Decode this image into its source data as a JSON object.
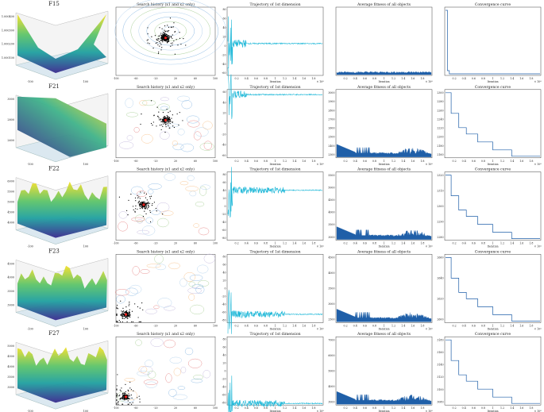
{
  "rows": [
    {
      "func": "F15",
      "search_title": "Search history (x1 and x2 only)",
      "traj_title": "Trajectory of 1st dimension",
      "fit_title": "Average fitness of all objects",
      "conv_title": "Convergence curve",
      "surface_ticks": [
        "1.000400",
        "1.000300",
        "1.000200",
        "1.000100"
      ],
      "traj_yticks": [
        "80",
        "60",
        "40",
        "20",
        "0",
        "-20",
        "-40",
        "-60"
      ],
      "traj_level": 5,
      "fit_yticks": [],
      "conv_yticks": []
    },
    {
      "func": "F21",
      "search_title": "Search history (x1 and x2 only)",
      "traj_title": "Trajectory of 1st dimension",
      "fit_title": "Average fitness of all objects",
      "conv_title": "Convergence curve",
      "surface_ticks": [
        "3000",
        "2800",
        "2600"
      ],
      "traj_yticks": [
        "60",
        "40",
        "20",
        "0",
        "-20",
        "-40",
        "-60"
      ],
      "traj_level": 55,
      "fit_yticks": [
        "3000",
        "2900",
        "2800",
        "2700",
        "2600",
        "2500",
        "2400",
        "2300"
      ],
      "conv_yticks": [
        "2300",
        "2280",
        "2260",
        "2240",
        "2220",
        "2200",
        "2180",
        "2160"
      ]
    },
    {
      "func": "F22",
      "search_title": "Search history (x1 and x2 only)",
      "traj_title": "Trajectory of 1st dimension",
      "fit_title": "Average fitness of all objects",
      "conv_title": "Convergence curve",
      "surface_ticks": [
        "6000",
        "5500",
        "5000",
        "4500",
        "4000"
      ],
      "traj_yticks": [
        "80",
        "60",
        "40",
        "20",
        "0",
        "-20",
        "-40",
        "-60",
        "-80"
      ],
      "traj_level": 40,
      "fit_yticks": [
        "5500",
        "5000",
        "4500",
        "4000",
        "3500",
        "3000"
      ],
      "conv_yticks": [
        "2320",
        "2310",
        "2300",
        "2290",
        "2280"
      ]
    },
    {
      "func": "F23",
      "search_title": "Search history (x1 and x2 only)",
      "traj_title": "Trajectory of 1st dimension",
      "fit_title": "Average fitness of all objects",
      "conv_title": "Convergence curve",
      "surface_ticks": [
        "4500",
        "4000",
        "3500",
        "3000"
      ],
      "traj_yticks": [
        "80",
        "60",
        "40",
        "20",
        "0",
        "-20",
        "-40",
        "-60",
        "-80"
      ],
      "traj_level": -65,
      "fit_yticks": [
        "4500",
        "4000",
        "3500",
        "3000",
        "2500"
      ],
      "conv_yticks": [
        "2660",
        "2640",
        "2620",
        "2600"
      ]
    },
    {
      "func": "F27",
      "search_title": "Search history (x1 and x2 only)",
      "traj_title": "Trajectory of 1st dimension",
      "fit_title": "Average fitness of all objects",
      "conv_title": "Convergence curve",
      "surface_ticks": [
        "5000",
        "4500",
        "4000",
        "3500",
        "3000"
      ],
      "traj_yticks": [
        "80",
        "60",
        "40",
        "20",
        "0",
        "-20",
        "-40",
        "-60",
        "-80"
      ],
      "traj_level": -82,
      "fit_yticks": [
        "7000",
        "6000",
        "5000",
        "4000",
        "3000"
      ],
      "conv_yticks": [
        "3180",
        "3160",
        "3140",
        "3120",
        "3100",
        "3080"
      ]
    }
  ],
  "x_ticks_iter": [
    "0.2",
    "0.4",
    "0.6",
    "0.8",
    "1",
    "1.2",
    "1.4",
    "1.6",
    "1.8"
  ],
  "x_ticks_search": [
    "-100",
    "-80",
    "-60",
    "-40",
    "-20",
    "0",
    "20",
    "40",
    "60",
    "80",
    "100"
  ],
  "x_label": "Iteration",
  "x_exponent": "× 10⁴",
  "colors": {
    "line": "#1fb8d8",
    "fit": "#1f5fa8",
    "point": "#000000",
    "best": "#e8201c"
  }
}
